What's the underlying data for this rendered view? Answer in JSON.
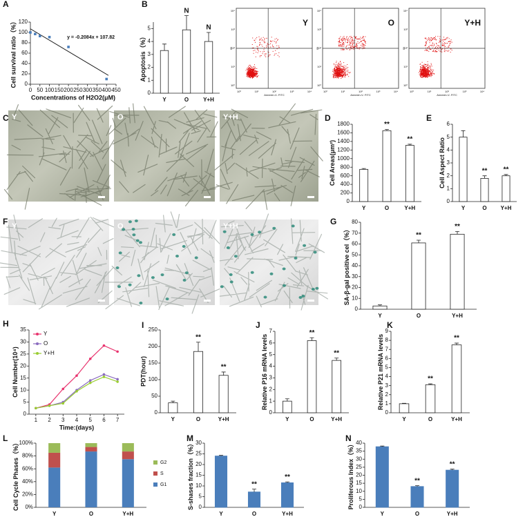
{
  "panel_labels": [
    "A",
    "B",
    "C",
    "D",
    "E",
    "F",
    "G",
    "H",
    "I",
    "J",
    "K",
    "L",
    "M",
    "N"
  ],
  "micrographs": {
    "C": [
      "Y",
      "O",
      "Y+H"
    ],
    "F": [
      "Y",
      "O",
      "Y+H"
    ]
  },
  "flow_cytometry": {
    "labels": [
      "Y",
      "O",
      "Y+H"
    ],
    "x_label": "Annexin-V- FITC",
    "y_label": "PI",
    "ticks": [
      "10⁰",
      "10¹",
      "10²",
      "10³",
      "10⁴"
    ]
  },
  "chart_data": [
    {
      "type": "scatter",
      "ylabel": "Cell survival ratio（%）",
      "xlabel": "Concentrations of H2O2(μM)",
      "annotation": "y = -0.2084x + 107.82",
      "x": [
        0,
        25,
        50,
        100,
        200,
        400
      ],
      "y": [
        100,
        97,
        93,
        91,
        72,
        10
      ],
      "color": "#4a7ebb",
      "fit": {
        "x": [
          0,
          410
        ],
        "y": [
          107,
          17
        ]
      },
      "xlim": [
        0,
        450
      ],
      "xticks": [
        0,
        50,
        100,
        150,
        200,
        250,
        300,
        350,
        400,
        450
      ],
      "ylim": [
        0,
        120
      ],
      "yticks": [
        0,
        20,
        40,
        60,
        80,
        100,
        120
      ]
    },
    {
      "type": "bar",
      "ylabel": "Apoptosis（%）",
      "categories": [
        "Y",
        "O",
        "Y+H"
      ],
      "values": [
        3.3,
        4.9,
        4.0
      ],
      "errors": [
        0.5,
        1.1,
        0.7
      ],
      "annotations": [
        null,
        "N",
        "N"
      ],
      "color": "#ffffff",
      "ylim": [
        0,
        5.5
      ],
      "yticks": [
        0,
        1,
        2,
        3,
        4,
        5
      ]
    },
    {
      "type": "bar",
      "ylabel": "Cell Areas(μm²)",
      "categories": [
        "Y",
        "O",
        "Y+H"
      ],
      "values": [
        750,
        1650,
        1310
      ],
      "errors": [
        20,
        30,
        25
      ],
      "annotations": [
        null,
        "**",
        "**"
      ],
      "color": "#ffffff",
      "ylim": [
        0,
        1800
      ],
      "yticks": [
        0,
        200,
        400,
        600,
        800,
        1000,
        1200,
        1400,
        1600,
        1800
      ]
    },
    {
      "type": "bar",
      "ylabel": "Cell Aspect Ratio",
      "categories": [
        "Y",
        "O",
        "Y+H"
      ],
      "values": [
        5.0,
        1.8,
        2.0
      ],
      "errors": [
        0.5,
        0.2,
        0.1
      ],
      "annotations": [
        null,
        "**",
        "**"
      ],
      "color": "#ffffff",
      "ylim": [
        0,
        6
      ],
      "yticks": [
        0,
        1,
        2,
        3,
        4,
        5,
        6
      ]
    },
    {
      "type": "bar",
      "ylabel": "SA-β-gal positive cel（%）",
      "categories": [
        "Y",
        "O",
        "Y+H"
      ],
      "values": [
        3,
        61,
        69
      ],
      "errors": [
        1,
        2.5,
        2.5
      ],
      "annotations": [
        null,
        "**",
        "**"
      ],
      "color": "#ffffff",
      "ylim": [
        0,
        80
      ],
      "yticks": [
        0,
        10,
        20,
        30,
        40,
        50,
        60,
        70,
        80
      ]
    },
    {
      "type": "line",
      "ylabel": "Cell Number(10⁴)",
      "xlabel": "Time:(days)",
      "x": [
        1,
        2,
        3,
        4,
        5,
        6,
        7
      ],
      "legend": "upper-left",
      "series": [
        {
          "name": "Y",
          "color": "#e8336e",
          "values": [
            2.5,
            4,
            10.5,
            16,
            23,
            28.5,
            26
          ]
        },
        {
          "name": "O",
          "color": "#8a6bbf",
          "values": [
            2.5,
            3.5,
            5,
            10,
            14,
            16.5,
            14.5
          ]
        },
        {
          "name": "Y+H",
          "color": "#9acd32",
          "values": [
            2.5,
            3.5,
            4.5,
            9.5,
            13,
            15.5,
            13.5
          ]
        }
      ],
      "xlim": [
        0.5,
        7.5
      ],
      "xticks": [
        1,
        2,
        3,
        4,
        5,
        6,
        7
      ],
      "ylim": [
        0,
        35
      ],
      "yticks": [
        0,
        5,
        10,
        15,
        20,
        25,
        30,
        35
      ]
    },
    {
      "type": "bar",
      "ylabel": "PDT(hour)",
      "categories": [
        "Y",
        "O",
        "Y+H"
      ],
      "values": [
        30,
        185,
        113
      ],
      "errors": [
        5,
        28,
        10
      ],
      "annotations": [
        null,
        "**",
        "**"
      ],
      "color": "#ffffff",
      "ylim": [
        0,
        250
      ],
      "yticks": [
        0,
        50,
        100,
        150,
        200,
        250
      ]
    },
    {
      "type": "bar",
      "ylabel": "Relative P16 mRNA levels",
      "categories": [
        "Y",
        "O",
        "Y+H"
      ],
      "values": [
        1,
        6.2,
        4.5
      ],
      "errors": [
        0.2,
        0.25,
        0.2
      ],
      "annotations": [
        null,
        "**",
        "**"
      ],
      "color": "#ffffff",
      "ylim": [
        0,
        7
      ],
      "yticks": [
        0,
        1,
        2,
        3,
        4,
        5,
        6,
        7
      ]
    },
    {
      "type": "bar",
      "ylabel": "Relative P21 mRNA levels",
      "categories": [
        "Y",
        "O",
        "Y+H"
      ],
      "values": [
        1,
        3.1,
        7.5
      ],
      "errors": [
        0.05,
        0.1,
        0.2
      ],
      "annotations": [
        null,
        "**",
        "**"
      ],
      "color": "#ffffff",
      "ylim": [
        0,
        9
      ],
      "yticks": [
        0,
        1,
        2,
        3,
        4,
        5,
        6,
        7,
        8,
        9
      ]
    },
    {
      "type": "stacked_bar",
      "ylabel": "Cell Cycle Phases（%）",
      "categories": [
        "Y",
        "O",
        "Y+H"
      ],
      "legend": "right",
      "series": [
        {
          "name": "G1",
          "color": "#4a7ebb",
          "values": [
            62,
            87,
            75
          ]
        },
        {
          "name": "S",
          "color": "#c0504d",
          "values": [
            23,
            7,
            12
          ]
        },
        {
          "name": "G2",
          "color": "#9bbb59",
          "values": [
            15,
            6,
            13
          ]
        }
      ],
      "ylim": [
        0,
        100
      ],
      "yticks": [
        {
          "value": 0,
          "label": "0%"
        },
        {
          "value": 20,
          "label": "20%"
        },
        {
          "value": 40,
          "label": "40%"
        },
        {
          "value": 60,
          "label": "60%"
        },
        {
          "value": 80,
          "label": "80%"
        },
        {
          "value": 100,
          "label": "100%"
        }
      ]
    },
    {
      "type": "bar",
      "ylabel": "S-shases fraction（%）",
      "categories": [
        "Y",
        "O",
        "Y+H"
      ],
      "values": [
        24,
        7.2,
        11.5
      ],
      "errors": [
        0.3,
        1.3,
        0.4
      ],
      "annotations": [
        null,
        "**",
        "**"
      ],
      "color": "#4a7ebb",
      "ylim": [
        0,
        30
      ],
      "yticks": [
        0,
        5,
        10,
        15,
        20,
        25,
        30
      ]
    },
    {
      "type": "bar",
      "ylabel": "Proliferous Index（%）",
      "categories": [
        "Y",
        "O",
        "Y+H"
      ],
      "values": [
        37.8,
        13,
        23.2
      ],
      "errors": [
        0.4,
        0.5,
        0.6
      ],
      "annotations": [
        null,
        "**",
        "**"
      ],
      "color": "#4a7ebb",
      "ylim": [
        0,
        40
      ],
      "yticks": [
        0,
        5,
        10,
        15,
        20,
        25,
        30,
        35,
        40
      ]
    }
  ]
}
